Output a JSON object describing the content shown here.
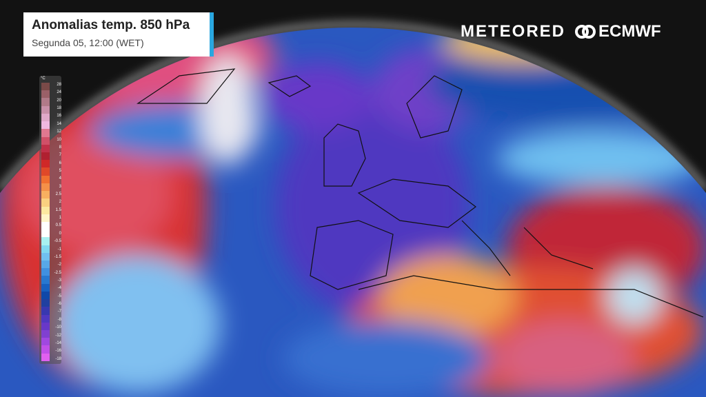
{
  "header": {
    "title": "Anomalias temp. 850 hPa",
    "subtitle": "Segunda 05, 12:00 (WET)"
  },
  "logos": {
    "meteored": "METEORED",
    "ecmwf": "ECMWF"
  },
  "legend": {
    "unit": "°C",
    "labels": [
      "28",
      "24",
      "20",
      "18",
      "16",
      "14",
      "12",
      "10",
      "8",
      "7",
      "6",
      "5",
      "4",
      "3",
      "2.5",
      "2",
      "1.5",
      "1",
      "0.5",
      "0",
      "-0.5",
      "-1",
      "-1.5",
      "-2",
      "-2.5",
      "-3",
      "-4",
      "-5",
      "-6",
      "-7",
      "-8",
      "-10",
      "-12",
      "-14",
      "-16",
      "-18"
    ],
    "colors": [
      "#7a4a48",
      "#9a6068",
      "#b07a88",
      "#c890a8",
      "#e0a8c8",
      "#f0b8e0",
      "#e07890",
      "#d05068",
      "#c03048",
      "#b02030",
      "#d02828",
      "#e04828",
      "#f07030",
      "#f49048",
      "#f8b060",
      "#fad080",
      "#fce8a0",
      "#fff4c8",
      "#ffffff",
      "#ffffff",
      "#a8f0f0",
      "#80d8f0",
      "#70c0f0",
      "#58a8e8",
      "#4090e0",
      "#2878d0",
      "#1860c0",
      "#1048a8",
      "#2040a0",
      "#3838b0",
      "#5038c0",
      "#6838c8",
      "#8040d0",
      "#a048e0",
      "#c050e8",
      "#e060f0"
    ]
  }
}
